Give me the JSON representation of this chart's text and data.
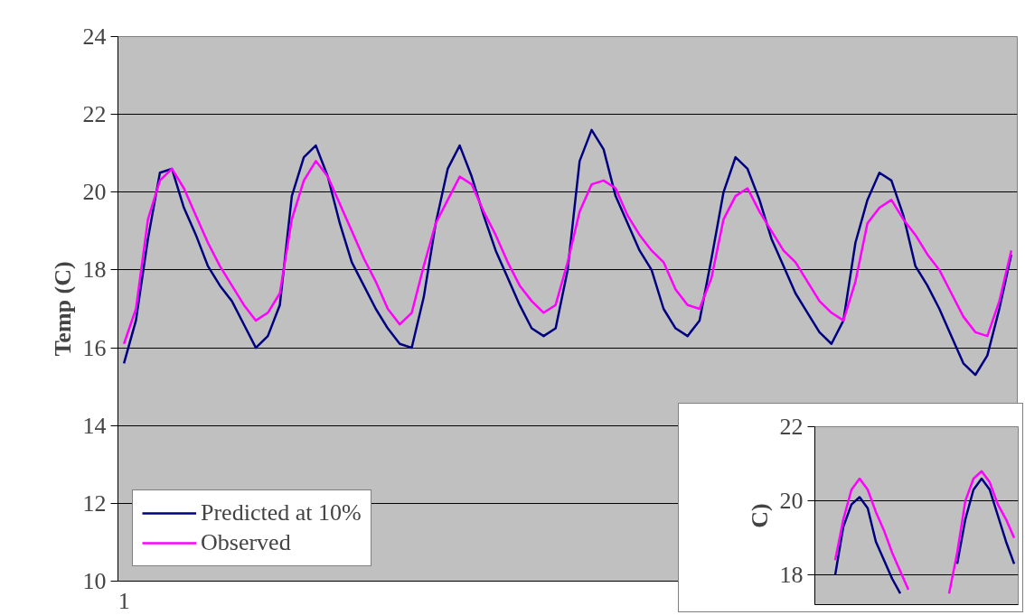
{
  "chart_data": [
    {
      "type": "line",
      "ylabel": "Temp (C)",
      "categories": [
        "1",
        null,
        null,
        null,
        null,
        null,
        null,
        null,
        null,
        null,
        null,
        null,
        null,
        null,
        null,
        null,
        null,
        null,
        null,
        null,
        null,
        null,
        null,
        null,
        null,
        null,
        null,
        null,
        null,
        null,
        null,
        null,
        null,
        null,
        null,
        null,
        null,
        null,
        null,
        null,
        null,
        null,
        null,
        null,
        null,
        null,
        null,
        null,
        null,
        null,
        null,
        null,
        null,
        null,
        null,
        null,
        null,
        null,
        null,
        null,
        null,
        null,
        null,
        null,
        null,
        null,
        null,
        null,
        null,
        null,
        null,
        null,
        null,
        null,
        null
      ],
      "series": [
        {
          "name": "Predicted at 10%",
          "color": "#000080",
          "values": [
            15.6,
            16.7,
            18.8,
            20.5,
            20.6,
            19.6,
            18.9,
            18.1,
            17.6,
            17.2,
            16.6,
            16.0,
            16.3,
            17.1,
            19.9,
            20.9,
            21.2,
            20.4,
            19.2,
            18.2,
            17.6,
            17.0,
            16.5,
            16.1,
            16.0,
            17.3,
            19.2,
            20.6,
            21.2,
            20.4,
            19.4,
            18.5,
            17.8,
            17.1,
            16.5,
            16.3,
            16.5,
            18.0,
            20.8,
            21.6,
            21.1,
            19.9,
            19.2,
            18.5,
            18.0,
            17.0,
            16.5,
            16.3,
            16.7,
            18.3,
            20.0,
            20.9,
            20.6,
            19.8,
            18.8,
            18.1,
            17.4,
            16.9,
            16.4,
            16.1,
            16.7,
            18.7,
            19.8,
            20.5,
            20.3,
            19.4,
            18.1,
            17.6,
            17.0,
            16.3,
            15.6,
            15.3,
            15.8,
            17.0,
            18.4
          ]
        },
        {
          "name": "Observed",
          "color": "#ff00ff",
          "values": [
            16.1,
            17.0,
            19.3,
            20.3,
            20.6,
            20.1,
            19.4,
            18.7,
            18.1,
            17.6,
            17.1,
            16.7,
            16.9,
            17.4,
            19.3,
            20.3,
            20.8,
            20.4,
            19.7,
            19.0,
            18.3,
            17.7,
            17.0,
            16.6,
            16.9,
            18.1,
            19.2,
            19.8,
            20.4,
            20.2,
            19.5,
            18.9,
            18.2,
            17.6,
            17.2,
            16.9,
            17.1,
            18.2,
            19.5,
            20.2,
            20.3,
            20.1,
            19.4,
            18.9,
            18.5,
            18.2,
            17.5,
            17.1,
            17.0,
            17.8,
            19.3,
            19.9,
            20.1,
            19.5,
            19.0,
            18.5,
            18.2,
            17.7,
            17.2,
            16.9,
            16.7,
            17.7,
            19.2,
            19.6,
            19.8,
            19.3,
            18.9,
            18.4,
            18.0,
            17.4,
            16.8,
            16.4,
            16.3,
            17.2,
            18.5
          ]
        }
      ],
      "ylim": [
        10,
        24
      ],
      "yticks": [
        10,
        12,
        14,
        16,
        18,
        20,
        22,
        24
      ],
      "grid": "y",
      "legend": "bottom left",
      "marker": "none",
      "line_style": "solid"
    },
    {
      "type": "line",
      "ylabel": "C)",
      "categories": [
        null,
        null,
        null,
        null,
        null,
        null,
        null,
        null,
        null,
        null,
        null,
        null,
        null,
        null,
        null,
        null,
        null,
        null,
        null,
        null,
        null,
        null,
        null,
        null,
        null
      ],
      "series": [
        {
          "color": "#000080",
          "values": [
            null,
            null,
            18.0,
            19.3,
            19.9,
            20.1,
            19.8,
            18.9,
            18.4,
            17.9,
            17.5,
            null,
            null,
            null,
            null,
            null,
            null,
            18.3,
            19.5,
            20.3,
            20.6,
            20.3,
            19.6,
            18.9,
            18.3
          ]
        },
        {
          "color": "#ff00ff",
          "values": [
            null,
            null,
            18.4,
            19.5,
            20.3,
            20.6,
            20.3,
            19.7,
            19.2,
            18.6,
            18.1,
            17.6,
            null,
            null,
            null,
            null,
            17.5,
            18.6,
            20.0,
            20.6,
            20.8,
            20.5,
            19.9,
            19.5,
            19.0
          ]
        }
      ],
      "ylim": [
        17.2,
        22
      ],
      "yticks": [
        18,
        20,
        22
      ],
      "grid": "y",
      "tick_labels": "y",
      "marker": "none",
      "line_style": "solid"
    }
  ]
}
